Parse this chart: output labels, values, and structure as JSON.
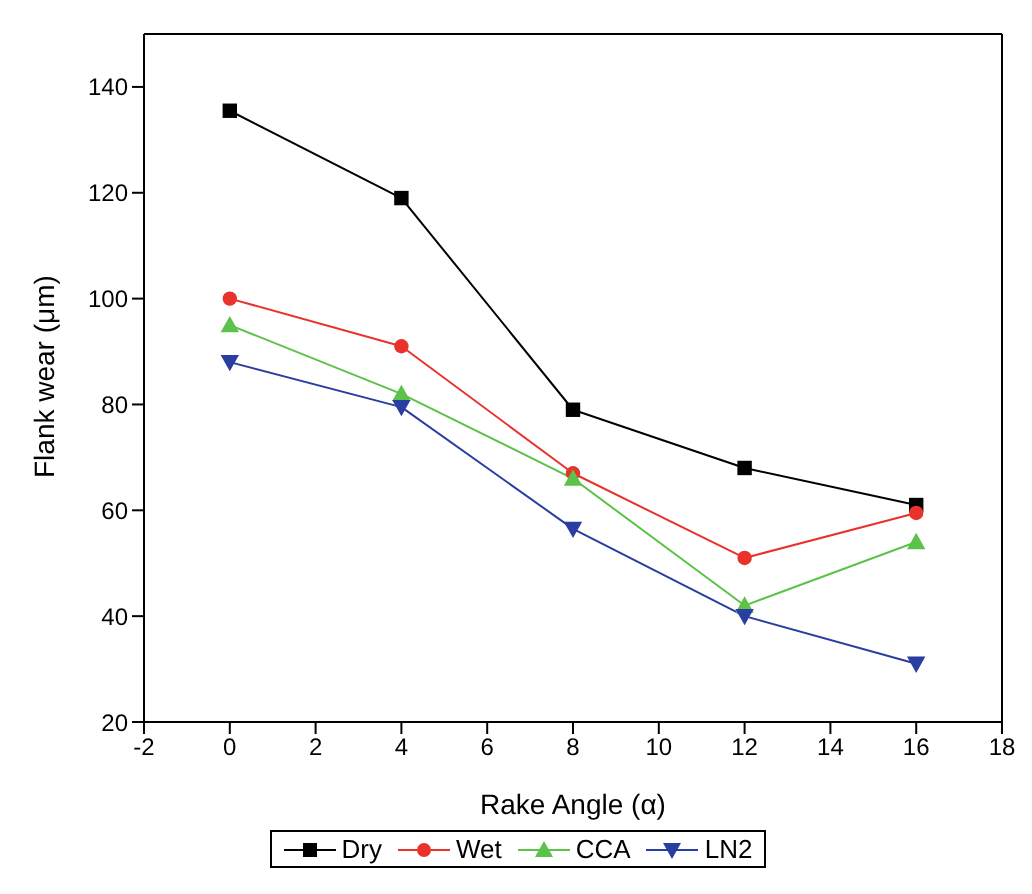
{
  "chart_data": {
    "type": "line",
    "xlabel": "Rake Angle (α)",
    "ylabel": "Flank wear (μm)",
    "x": [
      0,
      4,
      8,
      12,
      16
    ],
    "series": [
      {
        "name": "Dry",
        "color": "#000000",
        "marker": "square",
        "values": [
          135.5,
          119,
          79,
          68,
          61
        ]
      },
      {
        "name": "Wet",
        "color": "#e8322b",
        "marker": "circle",
        "values": [
          100,
          91,
          67,
          51,
          59.5
        ]
      },
      {
        "name": "CCA",
        "color": "#5cc24a",
        "marker": "triangle",
        "values": [
          95,
          82,
          66,
          42,
          54
        ]
      },
      {
        "name": "LN2",
        "color": "#2a3da0",
        "marker": "triangle-down",
        "values": [
          88,
          79.5,
          56.5,
          40,
          31
        ]
      }
    ],
    "xlim": [
      -2,
      18
    ],
    "xticks": [
      -2,
      0,
      2,
      4,
      6,
      8,
      10,
      12,
      14,
      16,
      18
    ],
    "ylim": [
      20,
      150
    ],
    "yticks": [
      20,
      40,
      60,
      80,
      100,
      120,
      140
    ],
    "grid": false,
    "legend": "bottom",
    "line_style": "solid"
  }
}
